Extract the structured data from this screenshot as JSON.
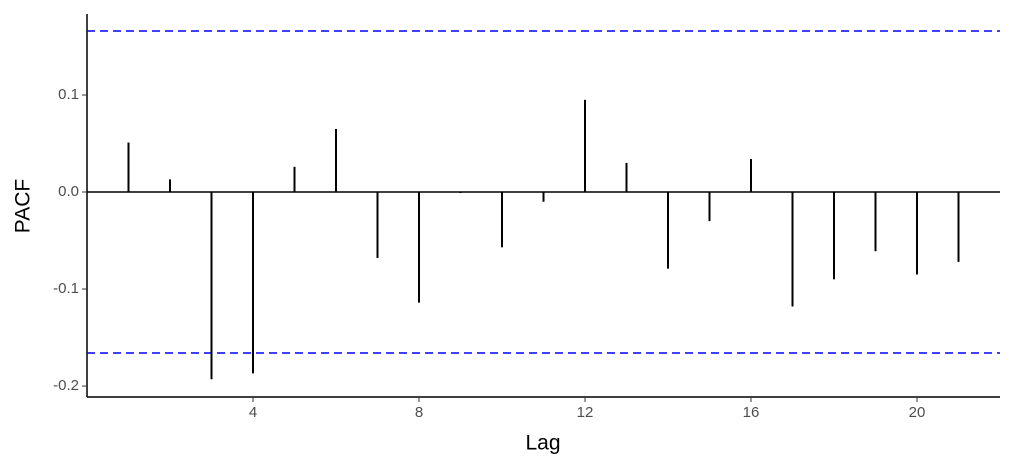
{
  "chart_data": {
    "type": "pacf",
    "x_label": "Lag",
    "y_label": "PACF",
    "x": [
      1,
      2,
      3,
      4,
      5,
      6,
      7,
      8,
      9,
      10,
      11,
      12,
      13,
      14,
      15,
      16,
      17,
      18,
      19,
      20,
      21
    ],
    "values": [
      0.051,
      0.013,
      -0.193,
      -0.187,
      0.026,
      0.065,
      -0.068,
      -0.114,
      -0.001,
      -0.057,
      -0.01,
      0.095,
      0.03,
      -0.079,
      -0.03,
      0.034,
      -0.118,
      -0.09,
      -0.061,
      -0.085,
      -0.072
    ],
    "color": "#000000",
    "ci_lines": [
      0.166,
      -0.166
    ],
    "ci_color": "#0000ff",
    "xlim": [
      0,
      22
    ],
    "xticks": [
      4,
      8,
      12,
      16,
      20
    ],
    "ylim": [
      -0.2113,
      0.1835
    ],
    "yticks": [
      -0.2,
      -0.1,
      {
        "value": 0,
        "label": "0.0"
      },
      0.1
    ]
  }
}
